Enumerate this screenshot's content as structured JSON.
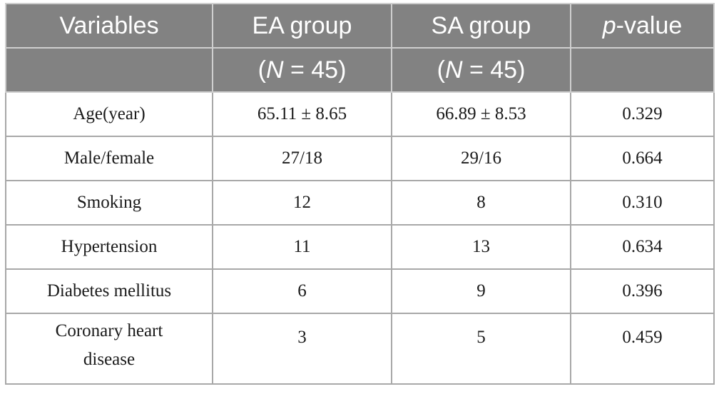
{
  "table": {
    "header_row1": {
      "variables": "Variables",
      "ea_group": "EA group",
      "sa_group": "SA group",
      "p_italic": "p",
      "p_rest": "-value"
    },
    "header_row2": {
      "ea_n_open": "(",
      "ea_n_italic": "N",
      "ea_n_rest": " = 45)",
      "sa_n_open": "(",
      "sa_n_italic": "N",
      "sa_n_rest": " = 45)"
    },
    "rows": [
      {
        "variable": "Age(year)",
        "ea": "65.11 ± 8.65",
        "sa": "66.89 ± 8.53",
        "p": "0.329"
      },
      {
        "variable": "Male/female",
        "ea": "27/18",
        "sa": "29/16",
        "p": "0.664"
      },
      {
        "variable": "Smoking",
        "ea": "12",
        "sa": "8",
        "p": "0.310"
      },
      {
        "variable": "Hypertension",
        "ea": "11",
        "sa": "13",
        "p": "0.634"
      },
      {
        "variable": "Diabetes mellitus",
        "ea": "6",
        "sa": "9",
        "p": "0.396"
      },
      {
        "variable": "Coronary heart disease",
        "ea": "3",
        "sa": "5",
        "p": "0.459"
      }
    ]
  }
}
